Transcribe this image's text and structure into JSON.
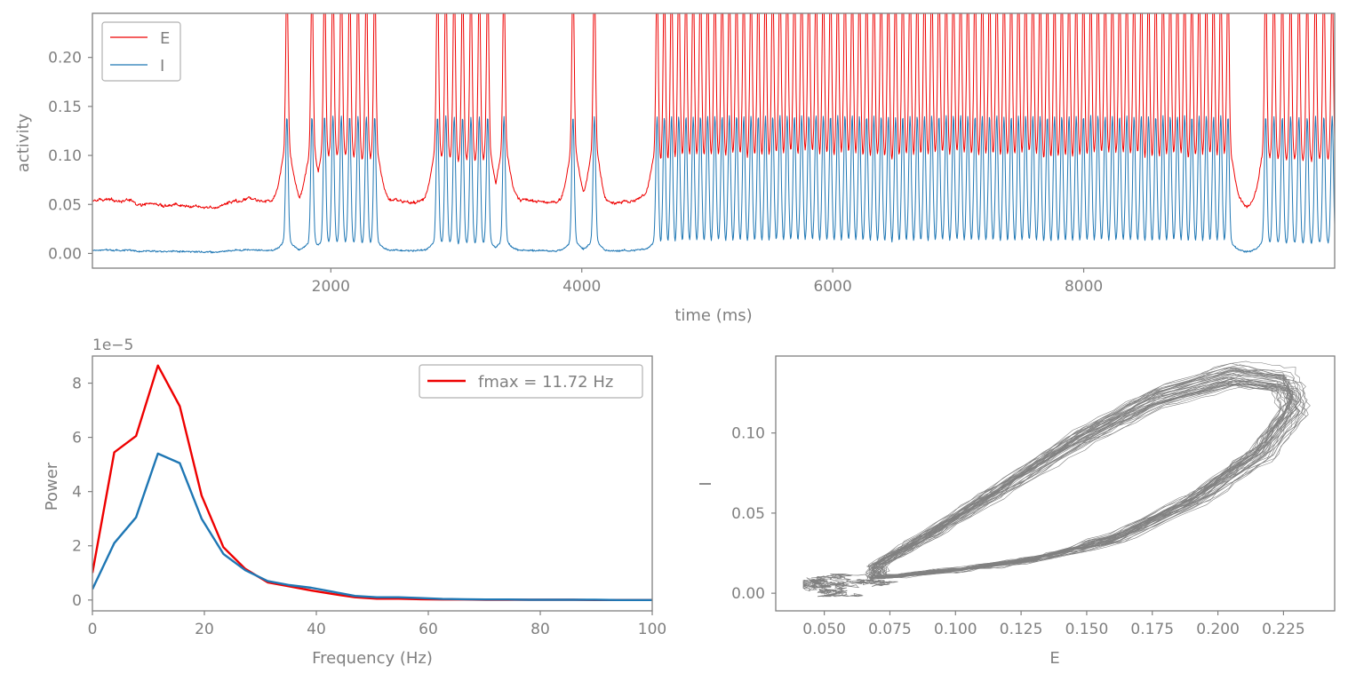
{
  "chart_data": [
    {
      "type": "line",
      "id": "time-series",
      "xlabel": "time (ms)",
      "ylabel": "activity",
      "xlim": [
        100,
        10000
      ],
      "ylim": [
        -0.015,
        0.245
      ],
      "xticks": [
        2000,
        4000,
        6000,
        8000
      ],
      "yticks": [
        0.0,
        0.05,
        0.1,
        0.15,
        0.2
      ],
      "xtick_labels": [
        "2000",
        "4000",
        "6000",
        "8000"
      ],
      "ytick_labels": [
        "0.00",
        "0.05",
        "0.10",
        "0.15",
        "0.20"
      ],
      "legend": "top-left",
      "baseline": {
        "E": 0.053,
        "I": 0.003
      },
      "bursts_ms": [
        [
          1650,
          1850,
          2
        ],
        [
          1950,
          2350,
          7
        ],
        [
          2850,
          3250,
          7
        ],
        [
          3380,
          3380,
          1
        ],
        [
          3930,
          4100,
          2
        ],
        [
          4600,
          9150,
          80
        ],
        [
          9450,
          9980,
          9
        ]
      ],
      "peak": {
        "E": 0.23,
        "I": 0.13
      },
      "trough": {
        "E": 0.11,
        "I": 0.01
      },
      "series": [
        {
          "name": "E",
          "color": "#ee0000"
        },
        {
          "name": "I",
          "color": "#1f77b4"
        }
      ]
    },
    {
      "type": "line",
      "id": "power-spectrum",
      "xlabel": "Frequency (Hz)",
      "ylabel": "Power",
      "offset_label": "1e−5",
      "xlim": [
        0,
        100
      ],
      "ylim": [
        -0.4,
        9.0
      ],
      "xticks": [
        0,
        20,
        40,
        60,
        80,
        100
      ],
      "yticks": [
        0,
        2,
        4,
        6,
        8
      ],
      "xtick_labels": [
        "0",
        "20",
        "40",
        "60",
        "80",
        "100"
      ],
      "ytick_labels": [
        "0",
        "2",
        "4",
        "6",
        "8"
      ],
      "legend": "top-right",
      "x": [
        0,
        3.9,
        7.8,
        11.7,
        15.6,
        19.5,
        23.4,
        27.3,
        31.3,
        35.2,
        39.1,
        43.0,
        46.9,
        50.8,
        54.7,
        58.6,
        62.5,
        66.4,
        70.3,
        74.2,
        78.1,
        82.0,
        85.9,
        89.8,
        93.8,
        97.7,
        100
      ],
      "series": [
        {
          "name": "fmax = 11.72 Hz",
          "color": "#ee0000",
          "values": [
            1.0,
            5.45,
            6.05,
            8.65,
            7.15,
            3.85,
            1.95,
            1.15,
            0.65,
            0.5,
            0.35,
            0.22,
            0.1,
            0.05,
            0.05,
            0.03,
            0.02,
            0.02,
            0.01,
            0.01,
            0.01,
            0.01,
            0.01,
            0.0,
            0.0,
            0.0,
            0.0
          ]
        },
        {
          "name": "",
          "color": "#1f77b4",
          "values": [
            0.4,
            2.1,
            3.05,
            5.4,
            5.05,
            3.0,
            1.7,
            1.1,
            0.7,
            0.55,
            0.45,
            0.3,
            0.15,
            0.1,
            0.1,
            0.07,
            0.04,
            0.03,
            0.02,
            0.02,
            0.01,
            0.01,
            0.01,
            0.01,
            0.0,
            0.0,
            0.0
          ]
        }
      ]
    },
    {
      "type": "line",
      "id": "phase-plane",
      "xlabel": "E",
      "ylabel": "I",
      "xlim": [
        0.0315,
        0.2445
      ],
      "ylim": [
        -0.011,
        0.148
      ],
      "xticks": [
        0.05,
        0.075,
        0.1,
        0.125,
        0.15,
        0.175,
        0.2,
        0.225
      ],
      "yticks": [
        0.0,
        0.05,
        0.1
      ],
      "xtick_labels": [
        "0.050",
        "0.075",
        "0.100",
        "0.125",
        "0.150",
        "0.175",
        "0.200",
        "0.225"
      ],
      "ytick_labels": [
        "0.00",
        "0.05",
        "0.10"
      ],
      "color": "#808080",
      "loop_count": 40,
      "loop_points": [
        [
          0.07,
          0.01
        ],
        [
          0.1,
          0.015
        ],
        [
          0.13,
          0.022
        ],
        [
          0.16,
          0.035
        ],
        [
          0.19,
          0.06
        ],
        [
          0.215,
          0.09
        ],
        [
          0.228,
          0.12
        ],
        [
          0.225,
          0.135
        ],
        [
          0.205,
          0.14
        ],
        [
          0.175,
          0.125
        ],
        [
          0.145,
          0.098
        ],
        [
          0.115,
          0.065
        ],
        [
          0.09,
          0.038
        ],
        [
          0.07,
          0.018
        ]
      ]
    }
  ]
}
